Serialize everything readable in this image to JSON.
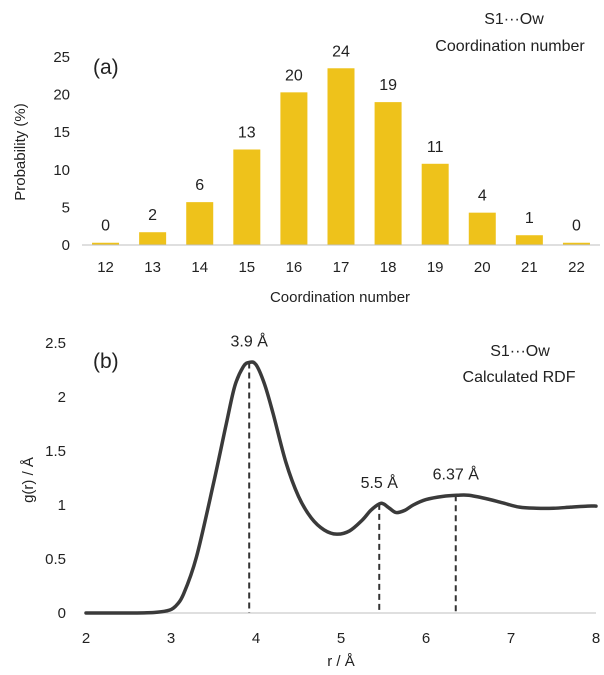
{
  "chart_data": [
    {
      "type": "bar",
      "panel_label": "(a)",
      "header": [
        "S1···Ow",
        "Coordination number"
      ],
      "xlabel": "Coordination number",
      "ylabel": "Probability (%)",
      "categories": [
        "12",
        "13",
        "14",
        "15",
        "16",
        "17",
        "18",
        "19",
        "20",
        "21",
        "22"
      ],
      "values": [
        0.3,
        1.7,
        5.7,
        12.7,
        20.3,
        23.5,
        19.0,
        10.8,
        4.3,
        1.3,
        0.3
      ],
      "data_labels": [
        "0",
        "2",
        "6",
        "13",
        "20",
        "24",
        "19",
        "11",
        "4",
        "1",
        "0"
      ],
      "ylim": [
        0,
        25
      ],
      "yticks": [
        "0",
        "5",
        "10",
        "15",
        "20",
        "25"
      ],
      "bar_color": "#EEC21B",
      "grid": false
    },
    {
      "type": "line",
      "panel_label": "(b)",
      "header": [
        "S1···Ow",
        "Calculated RDF"
      ],
      "xlabel": "r / Å",
      "ylabel": "g(r) / Å",
      "xlim": [
        2,
        8
      ],
      "ylim": [
        0,
        2.5
      ],
      "xticks": [
        "2",
        "3",
        "4",
        "5",
        "6",
        "7",
        "8"
      ],
      "yticks": [
        "0",
        "0.5",
        "1",
        "1.5",
        "2",
        "2.5"
      ],
      "line_color": "#3A3A3A",
      "series": [
        {
          "x": [
            2.0,
            2.5,
            2.8,
            2.95,
            3.05,
            3.15,
            3.3,
            3.5,
            3.65,
            3.75,
            3.85,
            3.92,
            4.0,
            4.1,
            4.2,
            4.35,
            4.5,
            4.65,
            4.8,
            4.95,
            5.1,
            5.25,
            5.35,
            5.45,
            5.5,
            5.57,
            5.65,
            5.75,
            5.85,
            6.0,
            6.2,
            6.37,
            6.5,
            6.7,
            6.9,
            7.1,
            7.3,
            7.5,
            7.7,
            7.9,
            8.0
          ],
          "y": [
            0.0,
            0.0,
            0.005,
            0.02,
            0.06,
            0.18,
            0.52,
            1.2,
            1.75,
            2.1,
            2.28,
            2.32,
            2.3,
            2.12,
            1.85,
            1.4,
            1.08,
            0.88,
            0.77,
            0.73,
            0.76,
            0.86,
            0.95,
            1.01,
            1.01,
            0.97,
            0.93,
            0.95,
            1.0,
            1.05,
            1.08,
            1.09,
            1.09,
            1.06,
            1.02,
            0.98,
            0.97,
            0.97,
            0.98,
            0.99,
            0.99
          ]
        }
      ],
      "annotations": [
        {
          "x": 3.92,
          "y": 2.32,
          "label": "3.9 Å"
        },
        {
          "x": 5.45,
          "y": 1.01,
          "label": "5.5 Å"
        },
        {
          "x": 6.35,
          "y": 1.09,
          "label": "6.37 Å"
        }
      ]
    }
  ]
}
